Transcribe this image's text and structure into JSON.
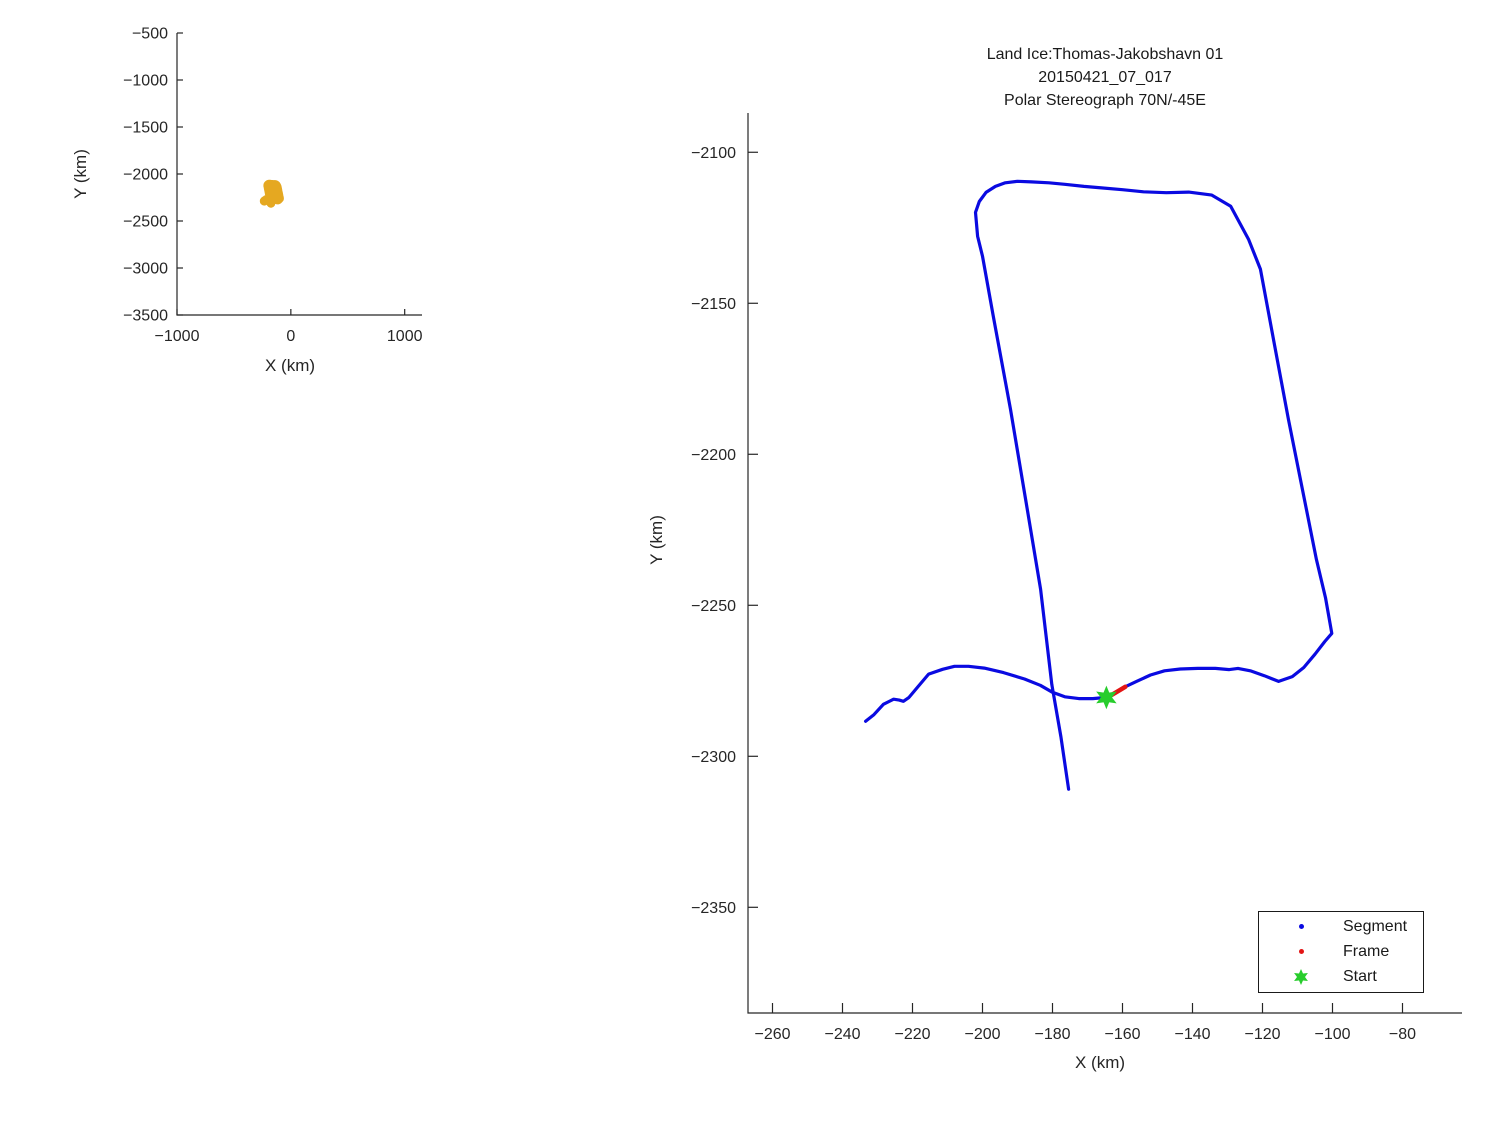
{
  "figure": {
    "title_lines": [
      "Land Ice:Thomas-Jakobshavn 01",
      "20150421_07_017",
      "Polar Stereograph 70N/-45E"
    ]
  },
  "colors": {
    "segment": "#0A0AE1",
    "frame": "#E31414",
    "start": "#28CD2D",
    "overview_track": "#E5A821",
    "axis": "#262626",
    "legend_border": "#1a1a1a"
  },
  "legend": {
    "position": "lower right inside",
    "items": [
      {
        "label": "Segment",
        "marker": "dot",
        "color_key": "segment"
      },
      {
        "label": "Frame",
        "marker": "dot",
        "color_key": "frame"
      },
      {
        "label": "Start",
        "marker": "hexagram",
        "color_key": "start"
      }
    ]
  },
  "chart_data": [
    {
      "id": "overview_inset",
      "type": "line",
      "title": "",
      "xlabel": "X (km)",
      "ylabel": "Y (km)",
      "xlim": [
        -1000,
        1152
      ],
      "ylim": [
        -3500,
        -500
      ],
      "x_ticks": [
        -1000,
        0,
        1000
      ],
      "y_ticks": [
        -500,
        -1000,
        -1500,
        -2000,
        -2500,
        -3000,
        -3500
      ],
      "grid": false,
      "series": [
        {
          "name": "flight-track-overview",
          "color_key": "overview_track",
          "linewidth": 9,
          "points_ref": "main.segment"
        }
      ]
    },
    {
      "id": "main",
      "type": "line",
      "title": "Land Ice:Thomas-Jakobshavn 01 20150421_07_017 Polar Stereograph 70N/-45E",
      "xlabel": "X (km)",
      "ylabel": "Y (km)",
      "xlim": [
        -267,
        -63
      ],
      "ylim": [
        -2385,
        -2087
      ],
      "x_ticks": [
        -260,
        -240,
        -220,
        -200,
        -180,
        -160,
        -140,
        -120,
        -100,
        -80
      ],
      "y_ticks": [
        -2100,
        -2150,
        -2200,
        -2250,
        -2300,
        -2350
      ],
      "grid": false,
      "series": [
        {
          "name": "segment",
          "color_key": "segment",
          "linewidth": 3.2,
          "points": [
            [
              -233.4,
              -2288.4
            ],
            [
              -231.0,
              -2286.2
            ],
            [
              -228.3,
              -2282.8
            ],
            [
              -225.4,
              -2281.1
            ],
            [
              -223.8,
              -2281.4
            ],
            [
              -222.6,
              -2281.8
            ],
            [
              -221.0,
              -2280.5
            ],
            [
              -218.6,
              -2277.2
            ],
            [
              -215.4,
              -2272.8
            ],
            [
              -211.4,
              -2271.2
            ],
            [
              -208.0,
              -2270.2
            ],
            [
              -204.0,
              -2270.2
            ],
            [
              -199.5,
              -2270.8
            ],
            [
              -194.0,
              -2272.3
            ],
            [
              -188.0,
              -2274.4
            ],
            [
              -183.5,
              -2276.5
            ],
            [
              -180.0,
              -2278.8
            ],
            [
              -176.5,
              -2280.3
            ],
            [
              -172.5,
              -2280.9
            ],
            [
              -168.5,
              -2280.9
            ],
            [
              -164.6,
              -2280.5
            ],
            [
              -163.2,
              -2279.8
            ],
            [
              -159.4,
              -2277.1
            ],
            [
              -156.0,
              -2275.2
            ],
            [
              -152.0,
              -2273.1
            ],
            [
              -148.0,
              -2271.7
            ],
            [
              -143.5,
              -2271.1
            ],
            [
              -138.5,
              -2270.9
            ],
            [
              -133.5,
              -2270.9
            ],
            [
              -129.5,
              -2271.3
            ],
            [
              -127.0,
              -2270.9
            ],
            [
              -123.5,
              -2271.7
            ],
            [
              -119.5,
              -2273.3
            ],
            [
              -115.4,
              -2275.2
            ],
            [
              -111.5,
              -2273.6
            ],
            [
              -108.2,
              -2270.6
            ],
            [
              -105.0,
              -2266.2
            ],
            [
              -102.2,
              -2262.0
            ],
            [
              -100.2,
              -2259.3
            ],
            [
              -102.0,
              -2247.5
            ],
            [
              -104.6,
              -2234.8
            ],
            [
              -108.6,
              -2211.6
            ],
            [
              -112.6,
              -2188.4
            ],
            [
              -116.6,
              -2163.6
            ],
            [
              -120.6,
              -2138.7
            ],
            [
              -124.0,
              -2128.8
            ],
            [
              -129.1,
              -2117.9
            ],
            [
              -134.5,
              -2114.2
            ],
            [
              -141.1,
              -2113.2
            ],
            [
              -147.5,
              -2113.4
            ],
            [
              -154.0,
              -2113.1
            ],
            [
              -160.0,
              -2112.4
            ],
            [
              -166.0,
              -2111.8
            ],
            [
              -171.0,
              -2111.3
            ],
            [
              -176.5,
              -2110.6
            ],
            [
              -181.0,
              -2110.1
            ],
            [
              -186.0,
              -2109.8
            ],
            [
              -190.0,
              -2109.6
            ],
            [
              -193.5,
              -2110.1
            ],
            [
              -196.3,
              -2111.3
            ],
            [
              -199.0,
              -2113.3
            ],
            [
              -200.9,
              -2116.3
            ],
            [
              -202.0,
              -2119.9
            ],
            [
              -201.4,
              -2127.8
            ],
            [
              -200.0,
              -2134.4
            ],
            [
              -196.9,
              -2154.3
            ],
            [
              -192.0,
              -2185.1
            ],
            [
              -187.7,
              -2214.9
            ],
            [
              -183.4,
              -2244.7
            ],
            [
              -180.2,
              -2276.2
            ],
            [
              -177.6,
              -2293.5
            ],
            [
              -175.4,
              -2310.9
            ]
          ]
        },
        {
          "name": "frame",
          "color_key": "frame",
          "linewidth": 4.5,
          "points": [
            [
              -163.4,
              -2279.9
            ],
            [
              -161.4,
              -2278.5
            ],
            [
              -159.2,
              -2277.0
            ]
          ]
        },
        {
          "name": "start",
          "color_key": "start",
          "marker": "hexagram",
          "marker_size": 21,
          "points": [
            [
              -164.6,
              -2280.5
            ]
          ]
        }
      ]
    }
  ]
}
